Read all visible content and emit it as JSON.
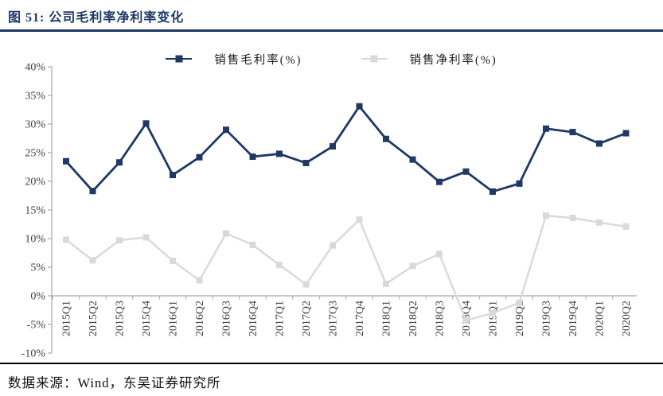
{
  "title": "图 51:  公司毛利率净利率变化",
  "footer": "数据来源：Wind，东吴证券研究所",
  "colors": {
    "title": "#1F3864",
    "axis": "#A6A6A6",
    "tick_text": "#3f3f3f",
    "rule_top": "#1F3864",
    "rule_bottom": "#000000"
  },
  "chart_data": {
    "type": "line",
    "title": "公司毛利率净利率变化",
    "categories": [
      "2015Q1",
      "2015Q2",
      "2015Q3",
      "2015Q4",
      "2016Q1",
      "2016Q2",
      "2016Q3",
      "2016Q4",
      "2017Q1",
      "2017Q2",
      "2017Q3",
      "2017Q4",
      "2018Q1",
      "2018Q2",
      "2018Q3",
      "2018Q4",
      "2019Q1",
      "2019Q2",
      "2019Q3",
      "2019Q4",
      "2020Q1",
      "2020Q2"
    ],
    "series": [
      {
        "name": "销售毛利率(%)",
        "color": "#1F3864",
        "values": [
          23.5,
          18.3,
          23.3,
          30.1,
          21.1,
          24.2,
          29.0,
          24.3,
          24.8,
          23.2,
          26.1,
          33.1,
          27.4,
          23.8,
          19.9,
          21.7,
          18.2,
          19.6,
          29.2,
          28.6,
          26.6,
          28.4
        ]
      },
      {
        "name": "销售净利率(%)",
        "color": "#D9D9D9",
        "values": [
          9.8,
          6.2,
          9.7,
          10.2,
          6.1,
          2.7,
          10.9,
          8.9,
          5.4,
          2.0,
          8.8,
          13.3,
          2.1,
          5.2,
          7.3,
          -4.3,
          -3.0,
          -1.2,
          14.0,
          13.6,
          12.8,
          12.1
        ]
      }
    ],
    "ylim": [
      -10,
      40
    ],
    "yticks": [
      "40%",
      "35%",
      "30%",
      "25%",
      "20%",
      "15%",
      "10%",
      "5%",
      "0%",
      "-5%",
      "-10%"
    ],
    "xlabel": "",
    "ylabel": "",
    "legend_position": "top",
    "grid": false
  }
}
